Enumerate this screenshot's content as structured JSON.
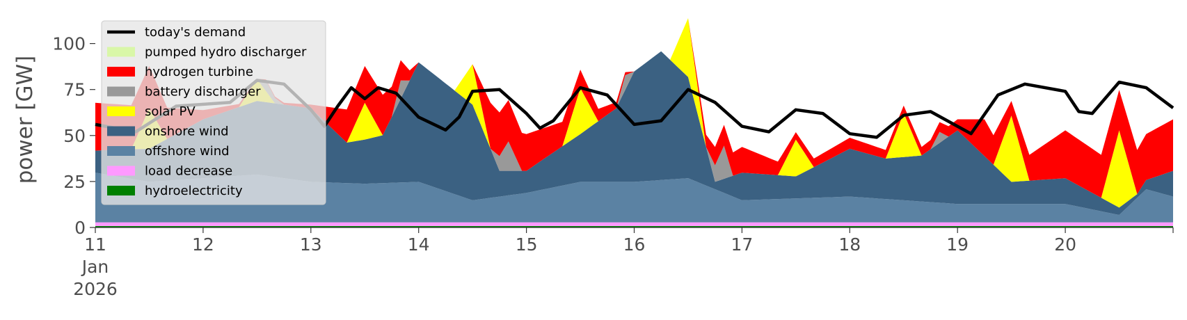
{
  "chart_data": {
    "type": "area",
    "title": "",
    "xlabel": "",
    "ylabel": "power [GW]",
    "ylim": [
      0,
      118
    ],
    "yticks": [
      0,
      25,
      50,
      75,
      100
    ],
    "x_start": "2026-01-11",
    "x_end": "2026-01-21",
    "xtick_labels": [
      {
        "x": "2026-01-11",
        "lines": [
          "11",
          "Jan",
          "2026"
        ]
      },
      {
        "x": "2026-01-12",
        "lines": [
          "12"
        ]
      },
      {
        "x": "2026-01-13",
        "lines": [
          "13"
        ]
      },
      {
        "x": "2026-01-14",
        "lines": [
          "14"
        ]
      },
      {
        "x": "2026-01-15",
        "lines": [
          "15"
        ]
      },
      {
        "x": "2026-01-16",
        "lines": [
          "16"
        ]
      },
      {
        "x": "2026-01-17",
        "lines": [
          "17"
        ]
      },
      {
        "x": "2026-01-18",
        "lines": [
          "18"
        ]
      },
      {
        "x": "2026-01-19",
        "lines": [
          "19"
        ]
      },
      {
        "x": "2026-01-20",
        "lines": [
          "20"
        ]
      }
    ],
    "grid": false,
    "legend_position": "upper-left",
    "series": [
      {
        "name": "today's demand",
        "kind": "line",
        "color": "#000000",
        "points": [
          [
            "2026-01-11T00:00",
            56
          ],
          [
            "2026-01-11T09:00",
            52
          ],
          [
            "2026-01-11T18:00",
            66
          ],
          [
            "2026-01-12T06:00",
            68
          ],
          [
            "2026-01-12T12:00",
            80
          ],
          [
            "2026-01-12T18:00",
            78
          ],
          [
            "2026-01-13T00:00",
            64
          ],
          [
            "2026-01-13T03:00",
            55
          ],
          [
            "2026-01-13T06:00",
            66
          ],
          [
            "2026-01-13T09:00",
            76
          ],
          [
            "2026-01-13T12:00",
            70
          ],
          [
            "2026-01-13T15:00",
            76
          ],
          [
            "2026-01-13T19:00",
            73
          ],
          [
            "2026-01-14T00:00",
            60
          ],
          [
            "2026-01-14T06:00",
            53
          ],
          [
            "2026-01-14T09:00",
            60
          ],
          [
            "2026-01-14T12:00",
            74
          ],
          [
            "2026-01-14T18:00",
            75
          ],
          [
            "2026-01-15T00:00",
            62
          ],
          [
            "2026-01-15T03:00",
            54
          ],
          [
            "2026-01-15T06:00",
            58
          ],
          [
            "2026-01-15T12:00",
            76
          ],
          [
            "2026-01-15T18:00",
            72
          ],
          [
            "2026-01-16T00:00",
            56
          ],
          [
            "2026-01-16T06:00",
            58
          ],
          [
            "2026-01-16T12:00",
            75
          ],
          [
            "2026-01-16T18:00",
            68
          ],
          [
            "2026-01-17T00:00",
            55
          ],
          [
            "2026-01-17T06:00",
            52
          ],
          [
            "2026-01-17T12:00",
            64
          ],
          [
            "2026-01-17T18:00",
            62
          ],
          [
            "2026-01-18T00:00",
            51
          ],
          [
            "2026-01-18T06:00",
            49
          ],
          [
            "2026-01-18T12:00",
            61
          ],
          [
            "2026-01-18T18:00",
            63
          ],
          [
            "2026-01-19T00:00",
            55
          ],
          [
            "2026-01-19T03:00",
            51
          ],
          [
            "2026-01-19T09:00",
            72
          ],
          [
            "2026-01-19T15:00",
            78
          ],
          [
            "2026-01-20T00:00",
            74
          ],
          [
            "2026-01-20T03:00",
            63
          ],
          [
            "2026-01-20T06:00",
            62
          ],
          [
            "2026-01-20T12:00",
            79
          ],
          [
            "2026-01-20T18:00",
            76
          ],
          [
            "2026-01-21T00:00",
            65
          ]
        ]
      },
      {
        "name": "pumped hydro discharger",
        "kind": "area",
        "color": "#d9f7a8",
        "points": [
          [
            "2026-01-11T00:00",
            0
          ],
          [
            "2026-01-21T00:00",
            0
          ]
        ]
      },
      {
        "name": "hydrogen turbine",
        "kind": "area",
        "color": "#ff0000",
        "points": [
          [
            "2026-01-11T00:00",
            26
          ],
          [
            "2026-01-11T12:00",
            23
          ],
          [
            "2026-01-12T00:00",
            5
          ],
          [
            "2026-01-12T12:00",
            0
          ],
          [
            "2026-01-13T00:00",
            2
          ],
          [
            "2026-01-13T08:00",
            18
          ],
          [
            "2026-01-13T16:00",
            22
          ],
          [
            "2026-01-14T00:00",
            0
          ],
          [
            "2026-01-14T12:00",
            0
          ],
          [
            "2026-01-14T16:00",
            25
          ],
          [
            "2026-01-15T00:00",
            20
          ],
          [
            "2026-01-15T12:00",
            10
          ],
          [
            "2026-01-15T18:00",
            5
          ],
          [
            "2026-01-16T00:00",
            0
          ],
          [
            "2026-01-16T12:00",
            0
          ],
          [
            "2026-01-16T18:00",
            10
          ],
          [
            "2026-01-17T00:00",
            14
          ],
          [
            "2026-01-17T12:00",
            4
          ],
          [
            "2026-01-18T00:00",
            6
          ],
          [
            "2026-01-18T12:00",
            4
          ],
          [
            "2026-01-19T00:00",
            6
          ],
          [
            "2026-01-19T06:00",
            20
          ],
          [
            "2026-01-19T12:00",
            8
          ],
          [
            "2026-01-20T00:00",
            26
          ],
          [
            "2026-01-20T12:00",
            22
          ],
          [
            "2026-01-21T00:00",
            28
          ]
        ]
      },
      {
        "name": "battery discharger",
        "kind": "area",
        "color": "#999999",
        "points": [
          [
            "2026-01-11T00:00",
            0
          ],
          [
            "2026-01-12T12:00",
            0
          ],
          [
            "2026-01-12T14:00",
            6
          ],
          [
            "2026-01-12T18:00",
            0
          ],
          [
            "2026-01-13T18:00",
            0
          ],
          [
            "2026-01-13T20:00",
            10
          ],
          [
            "2026-01-13T22:00",
            0
          ],
          [
            "2026-01-14T16:00",
            0
          ],
          [
            "2026-01-14T20:00",
            16
          ],
          [
            "2026-01-14T23:00",
            0
          ],
          [
            "2026-01-15T20:00",
            0
          ],
          [
            "2026-01-15T22:00",
            8
          ],
          [
            "2026-01-16T00:00",
            0
          ],
          [
            "2026-01-16T16:00",
            0
          ],
          [
            "2026-01-16T20:00",
            18
          ],
          [
            "2026-01-16T22:00",
            0
          ],
          [
            "2026-01-18T18:00",
            0
          ],
          [
            "2026-01-18T20:00",
            6
          ],
          [
            "2026-01-18T22:00",
            0
          ],
          [
            "2026-01-21T00:00",
            0
          ]
        ]
      },
      {
        "name": "solar PV",
        "kind": "area",
        "color": "#ffff00",
        "points": [
          [
            "2026-01-11T00:00",
            0
          ],
          [
            "2026-01-11T08:00",
            0
          ],
          [
            "2026-01-11T12:00",
            22
          ],
          [
            "2026-01-11T16:00",
            0
          ],
          [
            "2026-01-12T08:00",
            0
          ],
          [
            "2026-01-12T12:00",
            12
          ],
          [
            "2026-01-12T16:00",
            0
          ],
          [
            "2026-01-13T08:00",
            0
          ],
          [
            "2026-01-13T12:00",
            20
          ],
          [
            "2026-01-13T16:00",
            0
          ],
          [
            "2026-01-14T08:00",
            0
          ],
          [
            "2026-01-14T12:00",
            22
          ],
          [
            "2026-01-14T16:00",
            0
          ],
          [
            "2026-01-15T08:00",
            0
          ],
          [
            "2026-01-15T12:00",
            25
          ],
          [
            "2026-01-15T16:00",
            0
          ],
          [
            "2026-01-16T08:00",
            0
          ],
          [
            "2026-01-16T12:00",
            32
          ],
          [
            "2026-01-16T16:00",
            0
          ],
          [
            "2026-01-17T08:00",
            0
          ],
          [
            "2026-01-17T12:00",
            20
          ],
          [
            "2026-01-17T16:00",
            0
          ],
          [
            "2026-01-18T08:00",
            0
          ],
          [
            "2026-01-18T12:00",
            24
          ],
          [
            "2026-01-18T16:00",
            0
          ],
          [
            "2026-01-19T08:00",
            0
          ],
          [
            "2026-01-19T12:00",
            36
          ],
          [
            "2026-01-19T16:00",
            0
          ],
          [
            "2026-01-20T08:00",
            0
          ],
          [
            "2026-01-20T12:00",
            42
          ],
          [
            "2026-01-20T16:00",
            0
          ],
          [
            "2026-01-21T00:00",
            0
          ]
        ]
      },
      {
        "name": "onshore wind",
        "kind": "area",
        "color": "#3b6182",
        "points": [
          [
            "2026-01-11T00:00",
            12
          ],
          [
            "2026-01-11T12:00",
            18
          ],
          [
            "2026-01-12T00:00",
            32
          ],
          [
            "2026-01-12T12:00",
            40
          ],
          [
            "2026-01-13T00:00",
            40
          ],
          [
            "2026-01-13T08:00",
            22
          ],
          [
            "2026-01-13T16:00",
            26
          ],
          [
            "2026-01-14T00:00",
            65
          ],
          [
            "2026-01-14T12:00",
            52
          ],
          [
            "2026-01-14T18:00",
            14
          ],
          [
            "2026-01-15T00:00",
            12
          ],
          [
            "2026-01-15T12:00",
            26
          ],
          [
            "2026-01-15T20:00",
            40
          ],
          [
            "2026-01-16T00:00",
            60
          ],
          [
            "2026-01-16T06:00",
            70
          ],
          [
            "2026-01-16T12:00",
            55
          ],
          [
            "2026-01-16T18:00",
            4
          ],
          [
            "2026-01-17T00:00",
            15
          ],
          [
            "2026-01-17T12:00",
            12
          ],
          [
            "2026-01-18T00:00",
            26
          ],
          [
            "2026-01-18T08:00",
            22
          ],
          [
            "2026-01-18T16:00",
            25
          ],
          [
            "2026-01-19T00:00",
            40
          ],
          [
            "2026-01-19T12:00",
            12
          ],
          [
            "2026-01-20T00:00",
            14
          ],
          [
            "2026-01-20T12:00",
            4
          ],
          [
            "2026-01-20T16:00",
            2
          ],
          [
            "2026-01-21T00:00",
            14
          ]
        ]
      },
      {
        "name": "offshore wind",
        "kind": "area",
        "color": "#5b82a3",
        "points": [
          [
            "2026-01-11T00:00",
            27
          ],
          [
            "2026-01-11T12:00",
            22
          ],
          [
            "2026-01-12T00:00",
            24
          ],
          [
            "2026-01-12T12:00",
            26
          ],
          [
            "2026-01-13T00:00",
            22
          ],
          [
            "2026-01-13T12:00",
            21
          ],
          [
            "2026-01-14T00:00",
            22
          ],
          [
            "2026-01-14T12:00",
            12
          ],
          [
            "2026-01-15T00:00",
            16
          ],
          [
            "2026-01-15T12:00",
            22
          ],
          [
            "2026-01-16T00:00",
            22
          ],
          [
            "2026-01-16T12:00",
            24
          ],
          [
            "2026-01-17T00:00",
            12
          ],
          [
            "2026-01-17T12:00",
            13
          ],
          [
            "2026-01-18T00:00",
            14
          ],
          [
            "2026-01-18T12:00",
            12
          ],
          [
            "2026-01-19T00:00",
            10
          ],
          [
            "2026-01-19T12:00",
            10
          ],
          [
            "2026-01-20T00:00",
            10
          ],
          [
            "2026-01-20T12:00",
            4
          ],
          [
            "2026-01-20T18:00",
            18
          ],
          [
            "2026-01-21T00:00",
            14
          ]
        ]
      },
      {
        "name": "load decrease",
        "kind": "area",
        "color": "#ff99ff",
        "points": [
          [
            "2026-01-11T00:00",
            2
          ],
          [
            "2026-01-12T00:00",
            2
          ],
          [
            "2026-01-13T00:00",
            2
          ],
          [
            "2026-01-14T00:00",
            2
          ],
          [
            "2026-01-15T00:00",
            2
          ],
          [
            "2026-01-16T00:00",
            2
          ],
          [
            "2026-01-17T00:00",
            2
          ],
          [
            "2026-01-18T00:00",
            2
          ],
          [
            "2026-01-19T00:00",
            2
          ],
          [
            "2026-01-20T00:00",
            2
          ],
          [
            "2026-01-21T00:00",
            2
          ]
        ]
      },
      {
        "name": "hydroelectricity",
        "kind": "area",
        "color": "#008000",
        "points": [
          [
            "2026-01-11T00:00",
            0.8
          ],
          [
            "2026-01-21T00:00",
            0.8
          ]
        ]
      }
    ]
  }
}
